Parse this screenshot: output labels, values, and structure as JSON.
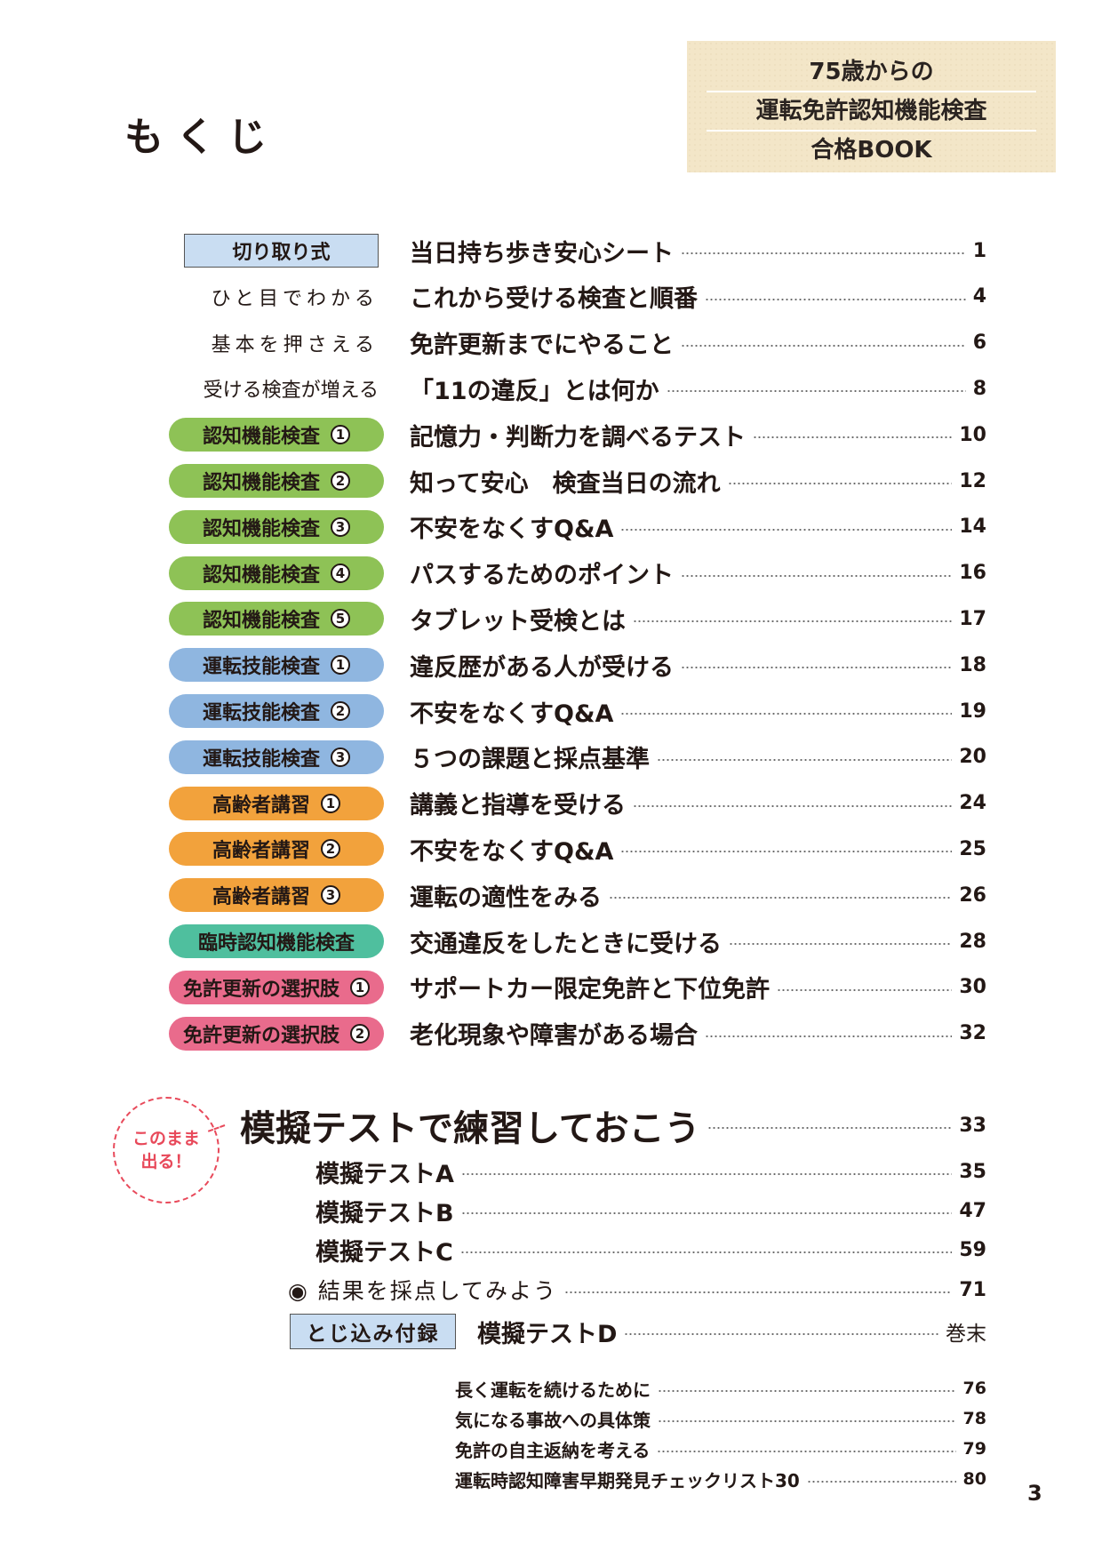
{
  "page_title": "もくじ",
  "book_title": [
    "75歳からの",
    "運転免許認知機能検査",
    "合格BOOK"
  ],
  "toc": [
    {
      "badge": "切り取り式",
      "style": "rect",
      "title": "当日持ち歩き安心シート",
      "page": "1"
    },
    {
      "badge": "ひと目でわかる",
      "style": "plain",
      "title": "これから受ける検査と順番",
      "page": "4"
    },
    {
      "badge": "基本を押さえる",
      "style": "plain",
      "title": "免許更新までにやること",
      "page": "6"
    },
    {
      "badge": "受ける検査が増える",
      "style": "plain tight",
      "title": "「11の違反」とは何か",
      "page": "8"
    },
    {
      "badge": "認知機能検査",
      "num": "1",
      "style": "green",
      "title": "記憶力・判断力を調べるテスト",
      "page": "10"
    },
    {
      "badge": "認知機能検査",
      "num": "2",
      "style": "green",
      "title": "知って安心　検査当日の流れ",
      "page": "12"
    },
    {
      "badge": "認知機能検査",
      "num": "3",
      "style": "green",
      "title": "不安をなくすQ&A",
      "page": "14"
    },
    {
      "badge": "認知機能検査",
      "num": "4",
      "style": "green",
      "title": "パスするためのポイント",
      "page": "16"
    },
    {
      "badge": "認知機能検査",
      "num": "5",
      "style": "green",
      "title": "タブレット受検とは",
      "page": "17"
    },
    {
      "badge": "運転技能検査",
      "num": "1",
      "style": "blue",
      "title": "違反歴がある人が受ける",
      "page": "18"
    },
    {
      "badge": "運転技能検査",
      "num": "2",
      "style": "blue",
      "title": "不安をなくすQ&A",
      "page": "19"
    },
    {
      "badge": "運転技能検査",
      "num": "3",
      "style": "blue",
      "title": "５つの課題と採点基準",
      "page": "20"
    },
    {
      "badge": "高齢者講習",
      "num": "1",
      "style": "orange",
      "title": "講義と指導を受ける",
      "page": "24"
    },
    {
      "badge": "高齢者講習",
      "num": "2",
      "style": "orange",
      "title": "不安をなくすQ&A",
      "page": "25"
    },
    {
      "badge": "高齢者講習",
      "num": "3",
      "style": "orange",
      "title": "運転の適性をみる",
      "page": "26"
    },
    {
      "badge": "臨時認知機能検査",
      "style": "teal",
      "title": "交通違反をしたときに受ける",
      "page": "28"
    },
    {
      "badge": "免許更新の選択肢",
      "num": "1",
      "style": "pink",
      "title": "サポートカー限定免許と下位免許",
      "page": "30"
    },
    {
      "badge": "免許更新の選択肢",
      "num": "2",
      "style": "pink",
      "title": "老化現象や障害がある場合",
      "page": "32"
    }
  ],
  "callout": [
    "このまま",
    "出る！"
  ],
  "mock": {
    "main": {
      "title": "模擬テストで練習しておこう",
      "page": "33"
    },
    "tests": [
      {
        "title": "模擬テストA",
        "page": "35"
      },
      {
        "title": "模擬テストB",
        "page": "47"
      },
      {
        "title": "模擬テストC",
        "page": "59"
      }
    ],
    "result": {
      "title": "◉ 結果を採点してみよう",
      "page": "71"
    },
    "appendix_badge": "とじ込み付録",
    "appendix": {
      "title": "模擬テストD",
      "page": "巻末"
    }
  },
  "extras": [
    {
      "title": "長く運転を続けるために",
      "page": "76"
    },
    {
      "title": "気になる事故への具体策",
      "page": "78"
    },
    {
      "title": "免許の自主返納を考える",
      "page": "79"
    },
    {
      "title": "運転時認知障害早期発見チェックリスト30",
      "page": "80"
    }
  ],
  "folio": "3"
}
